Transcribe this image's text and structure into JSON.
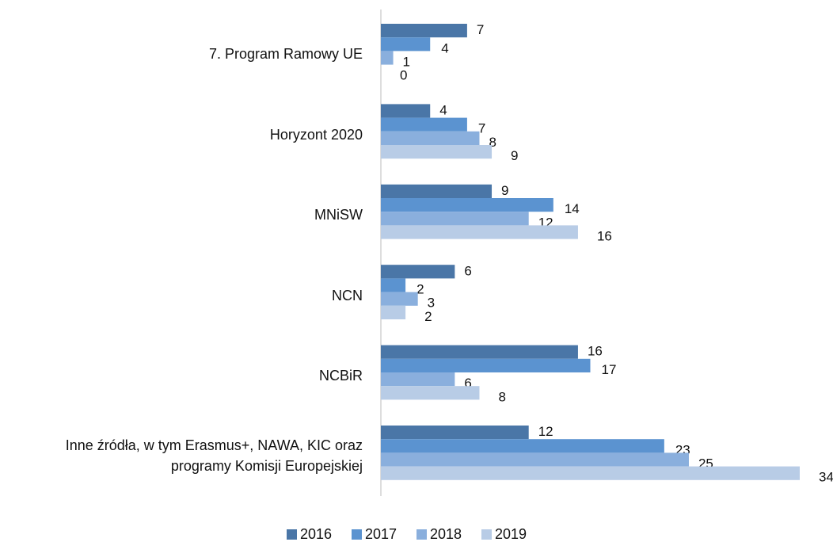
{
  "chart_data": {
    "type": "bar",
    "orientation": "horizontal",
    "categories": [
      "7. Program Ramowy UE",
      "Horyzont 2020",
      "MNiSW",
      "NCN",
      "NCBiR",
      "Inne źródła, w tym Erasmus+, NAWA, KIC oraz\nprogramy Komisji Europejskiej"
    ],
    "series": [
      {
        "name": "2016",
        "color": "#4a76a7",
        "values": [
          7,
          4,
          9,
          6,
          16,
          12
        ]
      },
      {
        "name": "2017",
        "color": "#5b93d0",
        "values": [
          4,
          7,
          14,
          2,
          17,
          23
        ]
      },
      {
        "name": "2018",
        "color": "#8aafdd",
        "values": [
          1,
          8,
          12,
          3,
          6,
          25
        ]
      },
      {
        "name": "2019",
        "color": "#b8cce6",
        "values": [
          0,
          9,
          16,
          2,
          8,
          34
        ]
      }
    ],
    "xlim": [
      0,
      34
    ],
    "legend": "bottom"
  }
}
